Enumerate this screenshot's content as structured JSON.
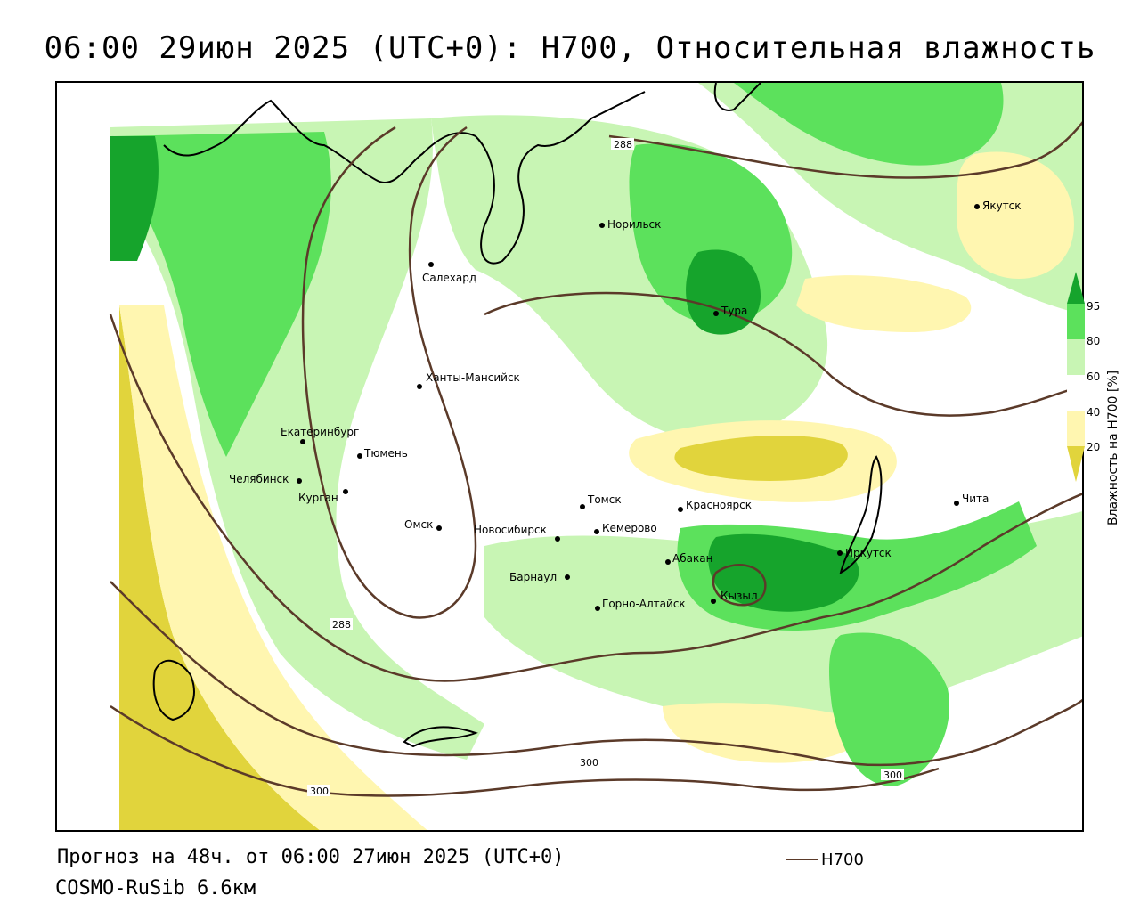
{
  "title": "06:00 29июн 2025 (UTC+0): H700, Относительная влажность",
  "footer": {
    "forecast": "Прогноз на 48ч. от 06:00 27июн 2025 (UTC+0)",
    "model": "COSMO-RuSib 6.6км"
  },
  "legend": {
    "contour_label": "H700",
    "contour_color": "#5b3a29"
  },
  "colorbar": {
    "title": "Влажность на H700 [%]",
    "ticks": [
      "95",
      "80",
      "60",
      "40",
      "20"
    ],
    "colors": {
      "very_dry": "#e1d43c",
      "dry": "#fff6b0",
      "neutral": "#ffffff",
      "moist": "#c8f5b4",
      "wet": "#5ce15c",
      "very_wet": "#16a42c"
    }
  },
  "cities": [
    {
      "name": "Норильск"
    },
    {
      "name": "Якутск"
    },
    {
      "name": "Салехард"
    },
    {
      "name": "Тура"
    },
    {
      "name": "Ханты-Мансийск"
    },
    {
      "name": "Екатеринбург"
    },
    {
      "name": "Тюмень"
    },
    {
      "name": "Челябинск"
    },
    {
      "name": "Курган"
    },
    {
      "name": "Омск"
    },
    {
      "name": "Новосибирск"
    },
    {
      "name": "Томск"
    },
    {
      "name": "Кемерово"
    },
    {
      "name": "Красноярск"
    },
    {
      "name": "Барнаул"
    },
    {
      "name": "Абакан"
    },
    {
      "name": "Горно-Алтайск"
    },
    {
      "name": "Кызыл"
    },
    {
      "name": "Иркутск"
    },
    {
      "name": "Чита"
    }
  ],
  "contour_labels": [
    "288",
    "288",
    "300",
    "300",
    "300"
  ]
}
